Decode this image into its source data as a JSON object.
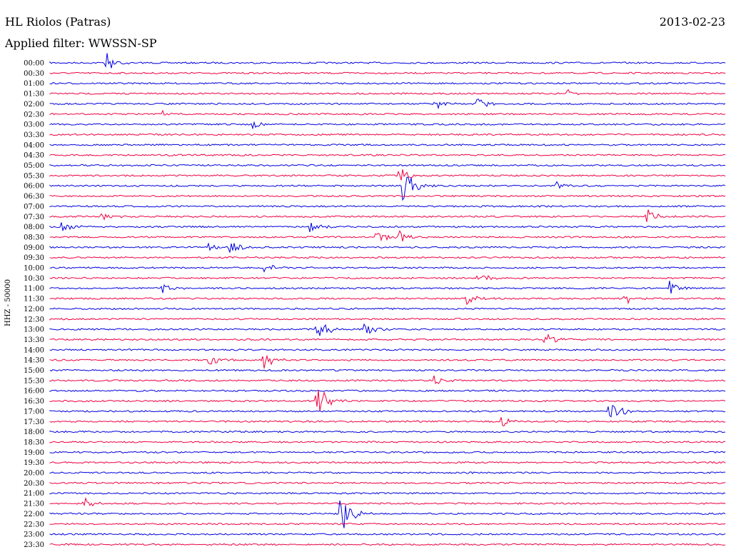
{
  "header": {
    "station": "HL Riolos (Patras)",
    "date": "2013-02-23",
    "filter": "Applied filter: WWSSN-SP"
  },
  "chart_data": {
    "type": "line",
    "title": "HL Riolos (Patras)",
    "subtitle": "Applied filter: WWSSN-SP",
    "ylabel": "HHZ - 50000",
    "colors": [
      "#0000e0",
      "#f00040"
    ],
    "rows": [
      "00:00",
      "00:30",
      "01:00",
      "01:30",
      "02:00",
      "02:30",
      "03:00",
      "03:30",
      "04:00",
      "04:30",
      "05:00",
      "05:30",
      "06:00",
      "06:30",
      "07:00",
      "07:30",
      "08:00",
      "08:30",
      "09:00",
      "09:30",
      "10:00",
      "10:30",
      "11:00",
      "11:30",
      "12:00",
      "12:30",
      "13:00",
      "13:30",
      "14:00",
      "14:30",
      "15:00",
      "15:30",
      "16:00",
      "16:30",
      "17:00",
      "17:30",
      "18:00",
      "18:30",
      "19:00",
      "19:30",
      "20:00",
      "20:30",
      "21:00",
      "21:30",
      "22:00",
      "22:30",
      "23:00",
      "23:30"
    ],
    "row_minutes": 30,
    "events": [
      {
        "row": "00:00",
        "minute": 2.5,
        "amp": 18
      },
      {
        "row": "01:30",
        "minute": 23,
        "amp": 6
      },
      {
        "row": "02:00",
        "minute": 17,
        "amp": 10
      },
      {
        "row": "02:00",
        "minute": 19,
        "amp": 10
      },
      {
        "row": "02:30",
        "minute": 5,
        "amp": 5
      },
      {
        "row": "03:00",
        "minute": 9,
        "amp": 7
      },
      {
        "row": "05:30",
        "minute": 15.5,
        "amp": 14
      },
      {
        "row": "06:00",
        "minute": 15.7,
        "amp": 35
      },
      {
        "row": "06:00",
        "minute": 22.5,
        "amp": 6
      },
      {
        "row": "07:30",
        "minute": 2.3,
        "amp": 8
      },
      {
        "row": "07:30",
        "minute": 26.5,
        "amp": 12
      },
      {
        "row": "08:00",
        "minute": 0.5,
        "amp": 8
      },
      {
        "row": "08:00",
        "minute": 11.5,
        "amp": 10
      },
      {
        "row": "08:30",
        "minute": 14.5,
        "amp": 10
      },
      {
        "row": "08:30",
        "minute": 15.5,
        "amp": 10
      },
      {
        "row": "09:00",
        "minute": 7,
        "amp": 8
      },
      {
        "row": "09:00",
        "minute": 8,
        "amp": 12
      },
      {
        "row": "10:00",
        "minute": 9.5,
        "amp": 10
      },
      {
        "row": "10:30",
        "minute": 19,
        "amp": 10
      },
      {
        "row": "11:00",
        "minute": 5,
        "amp": 8
      },
      {
        "row": "11:00",
        "minute": 27.5,
        "amp": 12
      },
      {
        "row": "11:30",
        "minute": 18.5,
        "amp": 12
      },
      {
        "row": "11:30",
        "minute": 25.5,
        "amp": 10
      },
      {
        "row": "13:00",
        "minute": 11.8,
        "amp": 22
      },
      {
        "row": "13:00",
        "minute": 14,
        "amp": 12
      },
      {
        "row": "13:30",
        "minute": 22,
        "amp": 10
      },
      {
        "row": "14:30",
        "minute": 7,
        "amp": 12
      },
      {
        "row": "14:30",
        "minute": 9.5,
        "amp": 12
      },
      {
        "row": "15:30",
        "minute": 17,
        "amp": 8
      },
      {
        "row": "16:30",
        "minute": 11.8,
        "amp": 30
      },
      {
        "row": "17:00",
        "minute": 24.8,
        "amp": 24
      },
      {
        "row": "17:30",
        "minute": 20,
        "amp": 12
      },
      {
        "row": "21:30",
        "minute": 1.5,
        "amp": 8
      },
      {
        "row": "22:00",
        "minute": 12.9,
        "amp": 40
      }
    ]
  }
}
